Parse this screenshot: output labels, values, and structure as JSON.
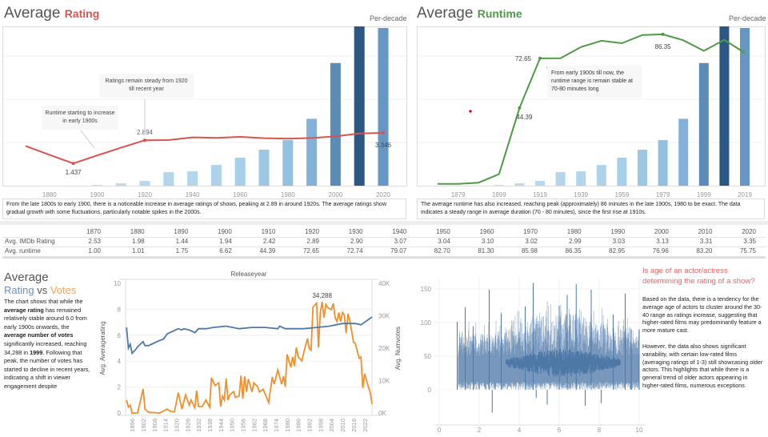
{
  "rating_panel": {
    "title_main": "Average",
    "title_accent": "Rating",
    "accent_color": "#d9534f",
    "per_decade": "Per-decade",
    "axis_labels": [
      "1880",
      "1900",
      "1920",
      "1940",
      "1960",
      "1980",
      "2000",
      "2020"
    ],
    "annotations": {
      "steady": "Ratings remain steady from 1920 till recent year",
      "runtime_start": "Runtime starting to increase in early 1900s"
    },
    "point_labels": {
      "min": "1.437",
      "peak_1920": "2.894",
      "last": "3.346"
    },
    "description": "From the late 1800s to early 1900, there is a noticeable increase in average ratings of shows, peaking at 2.89 in around 1920s. The average ratings show gradual growth with some fluctuations, particularly notable spikes in the 2000s."
  },
  "runtime_panel": {
    "title_main": "Average",
    "title_accent": "Runtime",
    "accent_color": "#4e9a45",
    "per_decade": "Per-decade",
    "axis_labels": [
      "1879",
      "1899",
      "1919",
      "1939",
      "1959",
      "1979",
      "1999",
      "2019"
    ],
    "annotation": "From early 1900s till now, the runtime range is remain stable at 70-80 minutes long",
    "point_labels": {
      "l1910": "44.39",
      "l1920": "72.65",
      "l1980": "86.35"
    },
    "description": "The average runtime has also increased, reaching peak (approximately) 86 minutes in the late 1900s, 1980 to be exact. The data indicates a steady range in average duration (70 - 80 minutes), since the first rise at 1910s."
  },
  "table": {
    "years": [
      "1870",
      "1880",
      "1890",
      "1900",
      "1910",
      "1920",
      "1930",
      "1940",
      "1950",
      "1960",
      "1970",
      "1980",
      "1990",
      "2000",
      "2010",
      "2020"
    ],
    "rows": [
      {
        "label": "Avg. IMDb Rating",
        "values": [
          "2.53",
          "1.98",
          "1.44",
          "1.94",
          "2.42",
          "2.89",
          "2.90",
          "3.07",
          "3.04",
          "3.10",
          "3.02",
          "2.99",
          "3.03",
          "3.13",
          "3.31",
          "3.35"
        ]
      },
      {
        "label": "Avg. runtime",
        "values": [
          "1.00",
          "1.01",
          "1.75",
          "6.62",
          "44.39",
          "72.65",
          "72.74",
          "79.07",
          "82.70",
          "81.30",
          "85.98",
          "86.35",
          "82.95",
          "76.96",
          "83.20",
          "75.75"
        ]
      }
    ]
  },
  "votes_panel": {
    "title": "Average",
    "subtitle_a": "Rating",
    "subtitle_vs": "vs",
    "subtitle_b": "Votes",
    "text": {
      "t1": "The chart shows that while the ",
      "b1": "average rating",
      "t2": " has remained relatively stable around 6.0 from early 1900s onwards, the ",
      "b2": "average number of votes",
      "t3": " significantly increased, reaching  34,288 in ",
      "b3": "1999",
      "t4": ". Following that peak, the number of votes has started to decline in recent years, indicating a shift in viewer engagement despite"
    }
  },
  "age_panel": {
    "title": "Is age of an actor/actress determining the rating of a show?",
    "p1": "Based on the data, there is a tendency for the average age of actors to cluster around the 30-40 range as ratings increase, suggesting that higher-rated films may predominantly feature a more mature cast.",
    "p2": "However, the data also shows significant variability, with certain low-rated films (averaging ratings of 1-3) still showcasing older actors. This highlights that while there is a general trend of older actors appearing in higher-rated films, numerous exceptions"
  },
  "chart_data": [
    {
      "type": "bar+line",
      "title": "Average Rating",
      "categories": [
        1870,
        1880,
        1890,
        1900,
        1910,
        1920,
        1930,
        1940,
        1950,
        1960,
        1970,
        1980,
        1990,
        2000,
        2010,
        2020
      ],
      "bar_relative_height": [
        0,
        0,
        0,
        0.005,
        0.015,
        0.03,
        0.085,
        0.09,
        0.13,
        0.176,
        0.226,
        0.286,
        0.42,
        0.77,
        1,
        0.99
      ],
      "bar_colors": [
        "#c6e0f0",
        "#c6e0f0",
        "#c6e0f0",
        "#c6e0f0",
        "#bcdbee",
        "#b6d8ee",
        "#b3d6ec",
        "#b3d6ec",
        "#add3eb",
        "#a6cfe9",
        "#9dc8e4",
        "#92c0e0",
        "#82b2da",
        "#5b8cb8",
        "#2a5783",
        "#6597c4"
      ],
      "line": {
        "values": [
          2.53,
          1.98,
          1.44,
          1.94,
          2.42,
          2.89,
          2.9,
          3.07,
          3.04,
          3.1,
          3.02,
          2.99,
          3.03,
          3.13,
          3.31,
          3.35
        ],
        "color": "#d9534f",
        "labeled": [
          2,
          5,
          15
        ]
      },
      "grid": true
    },
    {
      "type": "bar+line",
      "title": "Average Runtime",
      "categories": [
        1870,
        1880,
        1890,
        1900,
        1910,
        1920,
        1930,
        1940,
        1950,
        1960,
        1970,
        1980,
        1990,
        2000,
        2010,
        2020
      ],
      "bar_relative_height": [
        0,
        0,
        0,
        0.005,
        0.015,
        0.03,
        0.085,
        0.09,
        0.13,
        0.176,
        0.226,
        0.286,
        0.42,
        0.77,
        1,
        0.99
      ],
      "bar_colors": [
        "#c6e0f0",
        "#c6e0f0",
        "#c6e0f0",
        "#c6e0f0",
        "#bcdbee",
        "#b6d8ee",
        "#b3d6ec",
        "#b3d6ec",
        "#add3eb",
        "#a6cfe9",
        "#9dc8e4",
        "#92c0e0",
        "#82b2da",
        "#5b8cb8",
        "#2a5783",
        "#6597c4"
      ],
      "line": {
        "values": [
          1.0,
          1.01,
          1.75,
          6.62,
          44.39,
          72.65,
          72.74,
          79.07,
          82.7,
          81.3,
          85.98,
          86.35,
          82.95,
          76.96,
          83.2,
          75.75
        ],
        "color": "#4e9a45",
        "labeled": [
          4,
          5,
          11
        ]
      },
      "grid": true
    },
    {
      "type": "line",
      "title": "Releaseyear",
      "xlabel": "",
      "ylabel": "Avg. Averagerating",
      "y2label": "Avg. Numvotes",
      "xlim": [
        1892.5,
        2026
      ],
      "ylim": [
        0,
        10
      ],
      "y2lim": [
        0,
        40000
      ],
      "x_ticks": [
        "1896",
        "1902",
        "1908",
        "1914",
        "1920",
        "1926",
        "1932",
        "1938",
        "1944",
        "1950",
        "1956",
        "1962",
        "1968",
        "1974",
        "1980",
        "1986",
        "1992",
        "1998",
        "2004",
        "2010",
        "2016",
        "2022"
      ],
      "y_ticks": [
        "0",
        "2",
        "4",
        "6",
        "8",
        "10"
      ],
      "y2_ticks": [
        "0K",
        "10K",
        "20K",
        "30K",
        "40K"
      ],
      "peak_label": "34,288",
      "series": [
        {
          "axis": "left",
          "color": "#4e79a7",
          "points": [
            [
              1893,
              6.6
            ],
            [
              1894,
              5.0
            ],
            [
              1895,
              5.3
            ],
            [
              1896,
              4.6
            ],
            [
              1898,
              4.9
            ],
            [
              1899,
              5.1
            ],
            [
              1902,
              5.5
            ],
            [
              1903,
              5.2
            ],
            [
              1905,
              5.2
            ],
            [
              1908,
              5.4
            ],
            [
              1911,
              5.6
            ],
            [
              1913,
              5.7
            ],
            [
              1915,
              6.1
            ],
            [
              1918,
              6.3
            ],
            [
              1921,
              6.5
            ],
            [
              1923,
              6.4
            ],
            [
              1924,
              6.5
            ],
            [
              1927,
              6.4
            ],
            [
              1930,
              6.2
            ],
            [
              1932,
              6.5
            ],
            [
              1936,
              6.5
            ],
            [
              1940,
              6.6
            ],
            [
              1947,
              6.7
            ],
            [
              1954,
              6.5
            ],
            [
              1961,
              6.6
            ],
            [
              1968,
              6.6
            ],
            [
              1975,
              6.5
            ],
            [
              1976,
              6.7
            ],
            [
              1979,
              6.5
            ],
            [
              1989,
              6.5
            ],
            [
              1996,
              6.6
            ],
            [
              2003,
              6.7
            ],
            [
              2010,
              6.9
            ],
            [
              2017,
              6.9
            ],
            [
              2020,
              6.8
            ],
            [
              2026,
              7.4
            ]
          ]
        },
        {
          "axis": "right",
          "color": "#f28e2b",
          "points": [
            [
              1893,
              4000
            ],
            [
              1894,
              1800
            ],
            [
              1895,
              2400
            ],
            [
              1896,
              0
            ],
            [
              1899,
              0
            ],
            [
              1902,
              7400
            ],
            [
              1903,
              1200
            ],
            [
              1905,
              200
            ],
            [
              1911,
              0
            ],
            [
              1915,
              1200
            ],
            [
              1917,
              400
            ],
            [
              1919,
              400
            ],
            [
              1921,
              6300
            ],
            [
              1923,
              1200
            ],
            [
              1925,
              5600
            ],
            [
              1927,
              2400
            ],
            [
              1928,
              4000
            ],
            [
              1930,
              1600
            ],
            [
              1931,
              6900
            ],
            [
              1932,
              2000
            ],
            [
              1934,
              2000
            ],
            [
              1936,
              4000
            ],
            [
              1938,
              1800
            ],
            [
              1939,
              10900
            ],
            [
              1941,
              8500
            ],
            [
              1943,
              9300
            ],
            [
              1944,
              2000
            ],
            [
              1945,
              5200
            ],
            [
              1946,
              4000
            ],
            [
              1947,
              10700
            ],
            [
              1948,
              4000
            ],
            [
              1949,
              5600
            ],
            [
              1951,
              6600
            ],
            [
              1952,
              4800
            ],
            [
              1954,
              5200
            ],
            [
              1955,
              11500
            ],
            [
              1956,
              4400
            ],
            [
              1957,
              11300
            ],
            [
              1958,
              6500
            ],
            [
              1959,
              10500
            ],
            [
              1961,
              6500
            ],
            [
              1962,
              9300
            ],
            [
              1964,
              8100
            ],
            [
              1965,
              6500
            ],
            [
              1967,
              7300
            ],
            [
              1968,
              6000
            ],
            [
              1970,
              3200
            ],
            [
              1972,
              11100
            ],
            [
              1973,
              8900
            ],
            [
              1975,
              13300
            ],
            [
              1977,
              8900
            ],
            [
              1978,
              11300
            ],
            [
              1979,
              8100
            ],
            [
              1980,
              18100
            ],
            [
              1982,
              14100
            ],
            [
              1983,
              17300
            ],
            [
              1984,
              14500
            ],
            [
              1985,
              20200
            ],
            [
              1986,
              17300
            ],
            [
              1988,
              16100
            ],
            [
              1989,
              18500
            ],
            [
              1991,
              23000
            ],
            [
              1992,
              19800
            ],
            [
              1993,
              19400
            ],
            [
              1994,
              32700
            ],
            [
              1996,
              33900
            ],
            [
              1997,
              20200
            ],
            [
              1998,
              31000
            ],
            [
              1999,
              34288
            ],
            [
              2000,
              29400
            ],
            [
              2001,
              33500
            ],
            [
              2002,
              32500
            ],
            [
              2004,
              31900
            ],
            [
              2005,
              33800
            ],
            [
              2006,
              29400
            ],
            [
              2007,
              28200
            ],
            [
              2008,
              31000
            ],
            [
              2009,
              28200
            ],
            [
              2010,
              31000
            ],
            [
              2011,
              30200
            ],
            [
              2012,
              24600
            ],
            [
              2013,
              30600
            ],
            [
              2014,
              28600
            ],
            [
              2016,
              21800
            ],
            [
              2017,
              21400
            ],
            [
              2019,
              16900
            ],
            [
              2020,
              17300
            ],
            [
              2021,
              7700
            ],
            [
              2022,
              12100
            ],
            [
              2024,
              8100
            ],
            [
              2025,
              6500
            ],
            [
              2026,
              2800
            ]
          ]
        }
      ],
      "grid": true
    },
    {
      "type": "bar",
      "title": "",
      "xlim": [
        0,
        10
      ],
      "ylim": [
        -40,
        160
      ],
      "x_ticks": [
        "0",
        "2",
        "4",
        "6",
        "8",
        "10"
      ],
      "y_ticks": [
        "0",
        "50",
        "100",
        "150"
      ],
      "color": "#4e79a7",
      "spikes": [
        [
          0.9,
          101
        ],
        [
          1.3,
          123
        ],
        [
          1.7,
          94
        ],
        [
          2.5,
          149
        ],
        [
          2.65,
          -34
        ],
        [
          3.1,
          114
        ],
        [
          4.3,
          124
        ],
        [
          4.7,
          159
        ],
        [
          4.85,
          -12
        ],
        [
          5.4,
          -22
        ],
        [
          6.0,
          125
        ],
        [
          6.4,
          141
        ],
        [
          6.85,
          157
        ],
        [
          7.3,
          -24
        ],
        [
          7.6,
          149
        ],
        [
          8.1,
          -20
        ],
        [
          8.7,
          112
        ],
        [
          9.3,
          143
        ],
        [
          9.6,
          90
        ],
        [
          10.0,
          90
        ]
      ],
      "cluster_center": 40,
      "grid": true
    }
  ]
}
